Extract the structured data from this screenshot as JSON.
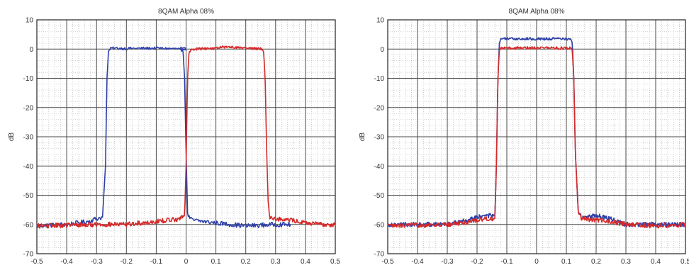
{
  "chart_data": [
    {
      "type": "line",
      "title": "8QAM  Alpha 08%",
      "xlabel": "",
      "ylabel": "dB",
      "xlim": [
        -0.5,
        0.5
      ],
      "ylim": [
        -70,
        10
      ],
      "xticks": [
        -0.5,
        -0.4,
        -0.3,
        -0.2,
        -0.1,
        0,
        0.1,
        0.2,
        0.3,
        0.4,
        0.5
      ],
      "xtick_labels": [
        "-0.5",
        "-0.4",
        "-0.3",
        "-0.2",
        "-0.1",
        "0",
        "0.1",
        "0.2",
        "0.3",
        "0.4",
        "0.5"
      ],
      "yticks": [
        10,
        0,
        -10,
        -20,
        -30,
        -40,
        -50,
        -60,
        -70
      ],
      "ytick_labels": [
        "10",
        "0",
        "-10",
        "-20",
        "-30",
        "-40",
        "-50",
        "-60",
        "-70"
      ],
      "grid": true,
      "series": [
        {
          "color": "#2d3fa8",
          "x": [
            -0.5,
            -0.4,
            -0.33,
            -0.3,
            -0.28,
            -0.27,
            -0.265,
            -0.26,
            -0.255,
            -0.25,
            -0.2,
            -0.1,
            0,
            -0.02,
            -0.01,
            -0.005,
            0,
            0.005,
            0.01,
            0.02,
            0.1,
            0.2,
            0.3,
            0.35
          ],
          "y": [
            -60.5,
            -60,
            -59,
            -58,
            -57.5,
            -40,
            -10,
            -1,
            0,
            0.3,
            0.2,
            0.3,
            0,
            0.3,
            -1,
            -10,
            -35,
            -56,
            -57.5,
            -58.5,
            -59.5,
            -60.5,
            -60,
            -60
          ],
          "order": "path"
        },
        {
          "color": "#d42a2a",
          "x": [
            -0.5,
            -0.3,
            -0.2,
            -0.1,
            -0.02,
            -0.005,
            0,
            0.005,
            0.01,
            0.02,
            0.1,
            0.14,
            0.2,
            0.25,
            0.26,
            0.265,
            0.27,
            0.275,
            0.28,
            0.3,
            0.35,
            0.4,
            0.45,
            0.5
          ],
          "y": [
            -60.5,
            -60,
            -60,
            -59,
            -58,
            -57,
            -40,
            -10,
            -1,
            0,
            0.3,
            0.8,
            0.3,
            0.2,
            -1,
            -10,
            -35,
            -52,
            -57.5,
            -58,
            -58.5,
            -59.5,
            -60,
            -60
          ]
        }
      ]
    },
    {
      "type": "line",
      "title": "8QAM  Alpha 08%",
      "xlabel": "",
      "ylabel": "dB",
      "xlim": [
        -0.5,
        0.5
      ],
      "ylim": [
        -70,
        10
      ],
      "xticks": [
        -0.5,
        -0.4,
        -0.3,
        -0.2,
        -0.1,
        0,
        0.1,
        0.2,
        0.3,
        0.4,
        0.5
      ],
      "xtick_labels": [
        "-0.5",
        "-0.4",
        "-0.3",
        "-0.2",
        "-0.1",
        "0",
        "0.1",
        "0.2",
        "0.3",
        "0.4",
        "0.5"
      ],
      "yticks": [
        10,
        0,
        -10,
        -20,
        -30,
        -40,
        -50,
        -60,
        -70
      ],
      "ytick_labels": [
        "10",
        "0",
        "-10",
        "-20",
        "-30",
        "-40",
        "-50",
        "-60",
        "-70"
      ],
      "grid": true,
      "series": [
        {
          "color": "#2d3fa8",
          "x": [
            -0.5,
            -0.3,
            -0.25,
            -0.2,
            -0.17,
            -0.14,
            -0.135,
            -0.13,
            -0.125,
            -0.12,
            -0.1,
            0,
            0.1,
            0.115,
            0.12,
            0.125,
            0.13,
            0.14,
            0.15,
            0.2,
            0.25,
            0.3,
            0.4,
            0.5
          ],
          "y": [
            -60,
            -60,
            -59,
            -57.5,
            -57,
            -57,
            -40,
            -10,
            2,
            3.5,
            3.5,
            3.5,
            3.5,
            3.5,
            2,
            -10,
            -35,
            -56,
            -57.5,
            -57,
            -58,
            -60,
            -60,
            -60
          ]
        },
        {
          "color": "#d42a2a",
          "x": [
            -0.5,
            -0.3,
            -0.25,
            -0.2,
            -0.17,
            -0.14,
            -0.135,
            -0.13,
            -0.125,
            -0.12,
            -0.1,
            0,
            0.1,
            0.115,
            0.12,
            0.125,
            0.13,
            0.14,
            0.15,
            0.2,
            0.25,
            0.3,
            0.4,
            0.5
          ],
          "y": [
            -60.5,
            -60,
            -59.5,
            -58.5,
            -58,
            -58,
            -40,
            -10,
            -0.5,
            0.3,
            0.3,
            0.5,
            0.3,
            0.3,
            -0.5,
            -10,
            -35,
            -56,
            -58,
            -58.5,
            -59,
            -60,
            -60.5,
            -60
          ]
        }
      ]
    }
  ]
}
